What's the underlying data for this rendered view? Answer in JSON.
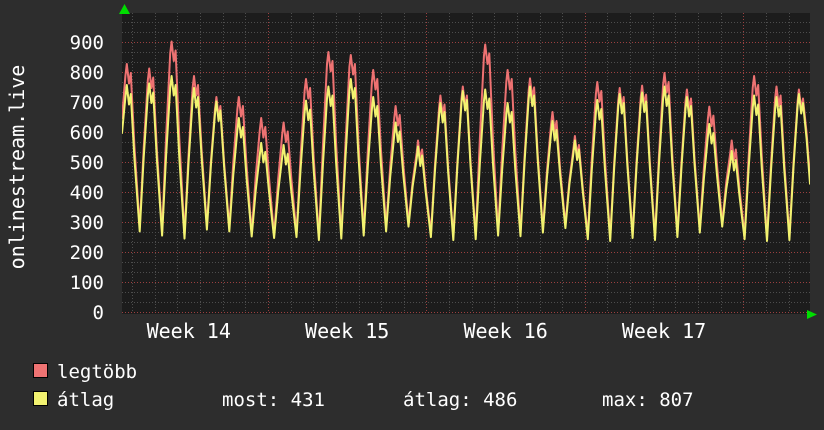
{
  "page": {
    "vertical_title": "onlinestream.live"
  },
  "colors": {
    "background": "#2d2d2d",
    "canvas": "#1c1c1c",
    "grid_minor": "#4d4d4d",
    "grid_major": "#9b4040",
    "text": "#ffffff",
    "axis_arrow": "#00dd00",
    "series_legtobb": "#ee7272",
    "series_atlag": "#f2f270"
  },
  "legend": {
    "entries": [
      {
        "label": "legtöbb"
      },
      {
        "label": "átlag"
      }
    ],
    "stats": [
      {
        "text": "most: 431"
      },
      {
        "text": "átlag: 486"
      },
      {
        "text": "max: 807"
      }
    ]
  },
  "chart_data": {
    "type": "line",
    "title": "onlinestream.live",
    "ylim": [
      0,
      1000
    ],
    "y_ticks": [
      0,
      100,
      200,
      300,
      400,
      500,
      600,
      700,
      800,
      900
    ],
    "y_minor_step": 33.333,
    "y_major_step": 100,
    "days_total": 30.4,
    "x_ticks": [
      {
        "label": "Week 14",
        "center_day": 2.95
      },
      {
        "label": "Week 15",
        "center_day": 9.95
      },
      {
        "label": "Week 16",
        "center_day": 16.95
      },
      {
        "label": "Week 17",
        "center_day": 23.95
      }
    ],
    "week_line_days": [
      6.45,
      13.45,
      20.45,
      27.45
    ],
    "day_line_offset": 0.45,
    "peak_day_offset": 0.25,
    "peak_day_spacing": 0.99,
    "series": [
      {
        "name": "legtöbb",
        "color": "#ee7272",
        "start": 650,
        "end": 455,
        "peaks": [
          830,
          815,
          905,
          790,
          720,
          720,
          650,
          635,
          780,
          870,
          860,
          810,
          690,
          575,
          725,
          755,
          895,
          810,
          782,
          670,
          590,
          770,
          750,
          758,
          800,
          745,
          688,
          575,
          790,
          755,
          745
        ],
        "troughs": [
          650,
          285,
          270,
          260,
          290,
          285,
          267,
          260,
          265,
          255,
          260,
          270,
          285,
          300,
          265,
          255,
          258,
          270,
          268,
          280,
          295,
          258,
          252,
          262,
          255,
          265,
          280,
          300,
          258,
          252,
          255
        ]
      },
      {
        "name": "átlag",
        "color": "#f2f270",
        "start": 600,
        "end": 431,
        "peaks": [
          760,
          765,
          790,
          750,
          705,
          650,
          567,
          560,
          708,
          755,
          780,
          720,
          635,
          555,
          700,
          740,
          745,
          700,
          755,
          640,
          575,
          710,
          730,
          735,
          755,
          720,
          630,
          540,
          725,
          720,
          730
        ],
        "troughs": [
          600,
          272,
          258,
          248,
          278,
          272,
          255,
          250,
          253,
          243,
          248,
          258,
          272,
          288,
          253,
          243,
          246,
          258,
          256,
          268,
          283,
          246,
          240,
          250,
          243,
          253,
          268,
          288,
          246,
          240,
          243
        ]
      }
    ]
  }
}
